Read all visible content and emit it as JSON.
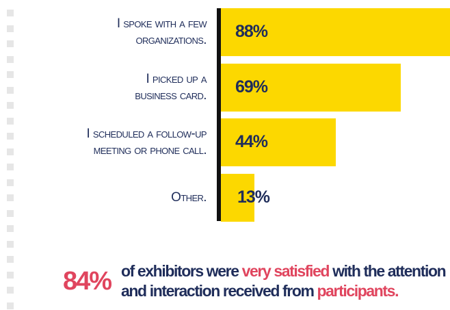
{
  "chart_data": {
    "type": "bar",
    "orientation": "horizontal",
    "categories": [
      [
        "I spoke with a few",
        "organizations."
      ],
      [
        "I picked up a",
        "business card."
      ],
      [
        "I scheduled a follow-up",
        "meeting or phone call."
      ],
      [
        "Other."
      ]
    ],
    "values": [
      88,
      69,
      44,
      13
    ],
    "value_labels": [
      "88%",
      "69%",
      "44%",
      "13%"
    ],
    "color": "#fcd800"
  },
  "callout": {
    "stat": "84%",
    "text": [
      {
        "text": "of exhibitors were",
        "color": "#1f2d5a"
      },
      {
        "text": "very satisfied",
        "color": "#e0455e"
      },
      {
        "text": "with the attention and",
        "color": "#1f2d5a"
      },
      {
        "text": "interaction received from",
        "color": "#1f2d5a"
      },
      {
        "text": "participants.",
        "color": "#e0455e"
      }
    ]
  }
}
